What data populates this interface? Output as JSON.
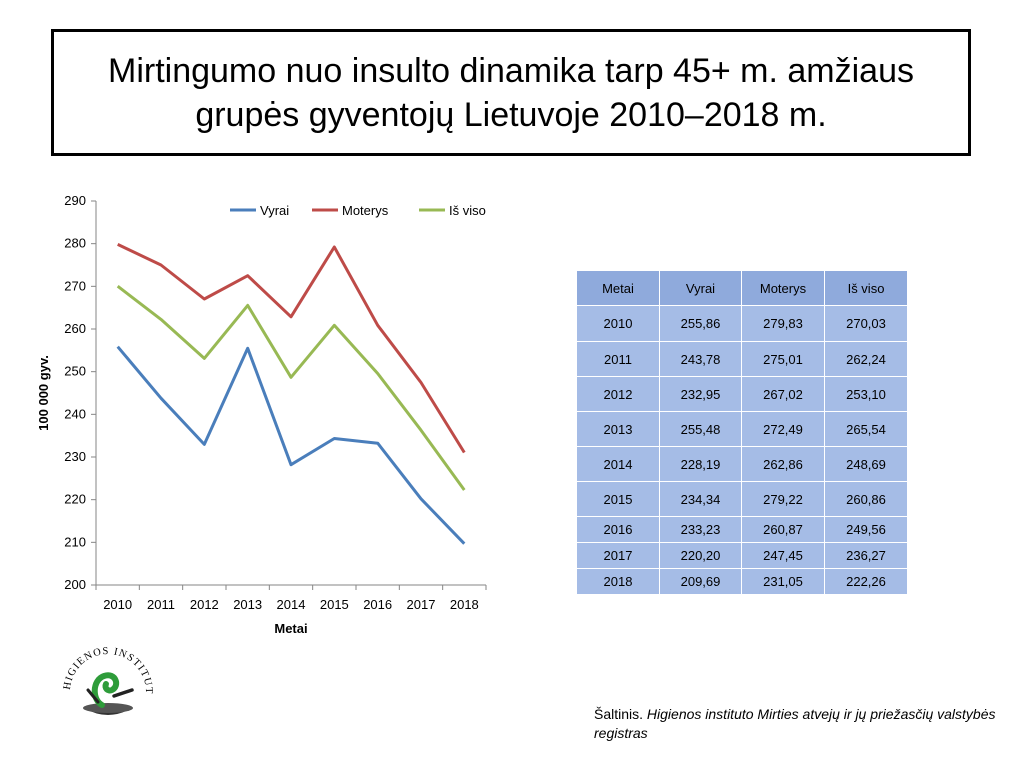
{
  "title": "Mirtingumo nuo insulto dinamika tarp 45+ m. amžiaus grupės gyventojų Lietuvoje 2010–2018 m.",
  "chart_data": {
    "type": "line",
    "categories": [
      "2010",
      "2011",
      "2012",
      "2013",
      "2014",
      "2015",
      "2016",
      "2017",
      "2018"
    ],
    "series": [
      {
        "name": "Vyrai",
        "color": "#4a7ebb",
        "values": [
          255.86,
          243.78,
          232.95,
          255.48,
          228.19,
          234.34,
          233.23,
          220.2,
          209.69
        ]
      },
      {
        "name": "Moterys",
        "color": "#be4b48",
        "values": [
          279.83,
          275.01,
          267.02,
          272.49,
          262.86,
          279.22,
          260.87,
          247.45,
          231.05
        ]
      },
      {
        "name": "Iš viso",
        "color": "#98b954",
        "values": [
          270.03,
          262.24,
          253.1,
          265.54,
          248.69,
          260.86,
          249.56,
          236.27,
          222.26
        ]
      }
    ],
    "xlabel": "Metai",
    "ylabel": "100 000 gyv.",
    "ylim": [
      200,
      290
    ],
    "yticks": [
      "200",
      "210",
      "220",
      "230",
      "240",
      "250",
      "260",
      "270",
      "280",
      "290"
    ],
    "grid": false,
    "legend_position": "top"
  },
  "table": {
    "headers": [
      "Metai",
      "Vyrai",
      "Moterys",
      "Iš viso"
    ],
    "rows": [
      [
        "2010",
        "255,86",
        "279,83",
        "270,03"
      ],
      [
        "2011",
        "243,78",
        "275,01",
        "262,24"
      ],
      [
        "2012",
        "232,95",
        "267,02",
        "253,10"
      ],
      [
        "2013",
        "255,48",
        "272,49",
        "265,54"
      ],
      [
        "2014",
        "228,19",
        "262,86",
        "248,69"
      ],
      [
        "2015",
        "234,34",
        "279,22",
        "260,86"
      ],
      [
        "2016",
        "233,23",
        "260,87",
        "249,56"
      ],
      [
        "2017",
        "220,20",
        "247,45",
        "236,27"
      ],
      [
        "2018",
        "209,69",
        "231,05",
        "222,26"
      ]
    ]
  },
  "source": {
    "prefix": "Šaltinis. ",
    "italic": "Higienos instituto  Mirties atvejų ir jų priežasčių valstybės registras"
  },
  "logo": {
    "text": "HIGIENOS INSTITUTAS"
  }
}
